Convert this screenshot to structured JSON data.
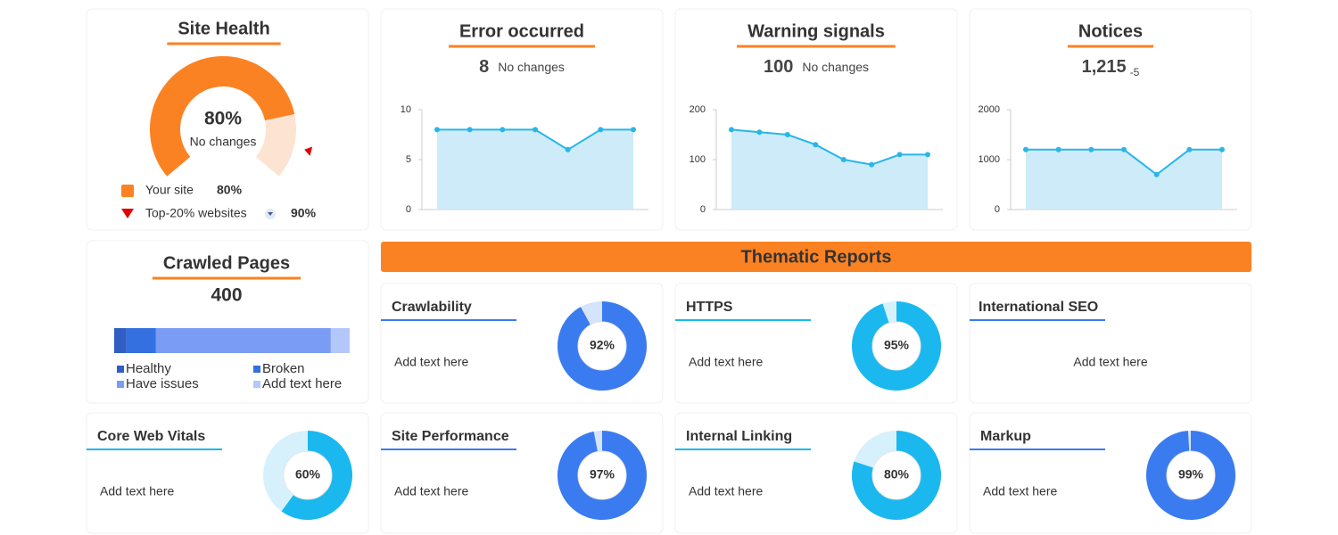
{
  "chart_data": [
    {
      "type": "gauge",
      "title": "Site Health",
      "value": 80,
      "value_label": "80%",
      "note": "No changes",
      "ylim": [
        0,
        100
      ],
      "color": "#fb8223",
      "track_color": "#fde4d2",
      "legend": [
        {
          "name": "Your site",
          "value": 80,
          "value_label": "80%",
          "color": "#fb8223"
        },
        {
          "name": "Top-20% websites",
          "value": 90,
          "value_label": "90%",
          "color": "#e00000"
        }
      ]
    },
    {
      "type": "line",
      "title": "Error occurred",
      "value": 8,
      "note": "No changes",
      "categories": [
        null,
        null,
        null,
        null,
        null,
        null,
        null
      ],
      "values": [
        8,
        8,
        8,
        8,
        6,
        8,
        8
      ],
      "color": "#29b6e8",
      "ylim": [
        0,
        10
      ],
      "yticks": [
        0,
        5,
        10
      ]
    },
    {
      "type": "line",
      "title": "Warning signals",
      "value": 100,
      "note": "No changes",
      "categories": [
        null,
        null,
        null,
        null,
        null,
        null,
        null,
        null
      ],
      "values": [
        160,
        155,
        150,
        130,
        100,
        90,
        110,
        110
      ],
      "color": "#29b6e8",
      "ylim": [
        0,
        200
      ],
      "yticks": [
        0,
        100,
        200
      ]
    },
    {
      "type": "line",
      "title": "Notices",
      "value": 1215,
      "value_label": "1,215",
      "change": -5,
      "categories": [
        null,
        null,
        null,
        null,
        null,
        null,
        null
      ],
      "values": [
        1200,
        1200,
        1200,
        1200,
        700,
        1200,
        1200
      ],
      "color": "#29b6e8",
      "ylim": [
        0,
        2000
      ],
      "yticks": [
        0,
        1000,
        2000
      ]
    },
    {
      "type": "stacked-bar",
      "title": "Crawled Pages",
      "value": 400,
      "xlim": [
        0,
        400
      ],
      "series": [
        {
          "name": "Healthy",
          "color": "#2f5fc4",
          "values": [
            21
          ]
        },
        {
          "name": "Broken",
          "color": "#3470e0",
          "values": [
            50
          ]
        },
        {
          "name": "Have issues",
          "color": "#7b9cf5",
          "values": [
            297
          ]
        },
        {
          "name": "Add text here",
          "color": "#b4c7fa",
          "values": [
            32
          ]
        }
      ]
    },
    {
      "type": "donut",
      "title": "Core Web Vitals",
      "text": "Add text here",
      "values": [
        60
      ],
      "value_labels": [
        "60%"
      ],
      "color": "#1ab8ef",
      "track_color": "#d6f1fb"
    },
    {
      "type": "donut",
      "title": "Crawlability",
      "text": "Add text here",
      "values": [
        92
      ],
      "value_labels": [
        "92%"
      ],
      "color": "#3b7bf0",
      "track_color": "#d5e3fb"
    },
    {
      "type": "donut",
      "title": "HTTPS",
      "text": "Add text here",
      "values": [
        95
      ],
      "value_labels": [
        "95%"
      ],
      "color": "#1ab8ef",
      "track_color": "#d6f1fb"
    },
    {
      "type": "donut",
      "title": "Site Performance",
      "text": "Add text here",
      "values": [
        97
      ],
      "value_labels": [
        "97%"
      ],
      "color": "#3b7bf0",
      "track_color": "#d5e3fb"
    },
    {
      "type": "donut",
      "title": "Internal Linking",
      "text": "Add text here",
      "values": [
        80
      ],
      "value_labels": [
        "80%"
      ],
      "color": "#1ab8ef",
      "track_color": "#d6f1fb"
    },
    {
      "type": "donut",
      "title": "Markup",
      "text": "Add text here",
      "values": [
        99
      ],
      "value_labels": [
        "99%"
      ],
      "color": "#3b7bf0",
      "track_color": "#d5e3fb"
    }
  ],
  "thematic_reports": {
    "title": "Thematic Reports"
  },
  "international_seo": {
    "title": "International SEO",
    "text": "Add text here"
  }
}
